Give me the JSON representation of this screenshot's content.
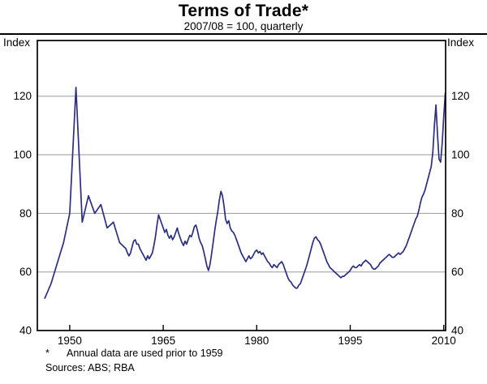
{
  "title": "Terms of Trade*",
  "subtitle": "2007/08 = 100, quarterly",
  "axis_label_left": "Index",
  "axis_label_right": "Index",
  "footnote_marker": "*",
  "footnote_text": "Annual data are used prior to 1959",
  "sources_text": "Sources: ABS; RBA",
  "chart_data": {
    "type": "line",
    "series_name": "Australia terms of trade",
    "line_color": "#2b2e84",
    "grid_color": "#9a9a9a",
    "frame_color": "#000000",
    "x_ticks": [
      1950,
      1965,
      1980,
      1995,
      2010
    ],
    "y_ticks": [
      40,
      60,
      80,
      100,
      120
    ],
    "xlim": [
      1944.8,
      2010.3
    ],
    "ylim": [
      40,
      139
    ],
    "legend": "none",
    "grid": "horizontal",
    "annual": {
      "note": "annual observations 1946-1958",
      "start_year": 1946,
      "step_years": 1,
      "values": [
        51,
        56,
        63,
        70,
        80,
        123,
        77,
        86,
        80,
        83,
        75,
        77,
        70
      ]
    },
    "quarterly": {
      "note": "quarterly observations from 1959 Q1 to 2010 Q2",
      "start_year": 1959,
      "step_years": 0.25,
      "values": [
        68,
        66.5,
        65.5,
        66.5,
        68.5,
        70.5,
        71,
        69.5,
        69.5,
        68,
        67,
        66,
        65,
        64,
        65.5,
        64.5,
        65.5,
        66.5,
        69,
        72,
        76,
        79.5,
        78,
        76.5,
        75,
        73.5,
        74.5,
        72.5,
        71.5,
        72.5,
        71,
        72,
        73.5,
        75,
        73,
        71.5,
        70,
        69,
        70.5,
        69.5,
        71,
        72.5,
        72,
        73.5,
        75.5,
        76,
        74,
        71.5,
        70,
        69,
        67,
        64.5,
        62,
        60.5,
        62.5,
        66,
        70,
        74,
        77.5,
        80.5,
        84.5,
        87.5,
        86,
        82.5,
        78,
        76.5,
        77.5,
        75,
        74,
        73.5,
        72.5,
        71,
        69.5,
        68,
        66.5,
        65.5,
        64.5,
        63.5,
        64.5,
        65.5,
        64.5,
        65,
        66,
        67,
        67.5,
        66.5,
        67,
        66,
        66.5,
        65.5,
        64.5,
        63.5,
        63,
        62,
        61.5,
        62.5,
        62,
        61.5,
        62.5,
        63,
        63.5,
        62.5,
        61,
        59.5,
        58,
        57,
        56.5,
        55.5,
        55,
        54.5,
        54.5,
        55.5,
        56,
        57.5,
        59,
        60.5,
        62,
        64,
        66,
        68,
        70,
        71.5,
        72,
        71,
        70.5,
        69.5,
        68,
        66.5,
        65,
        63.5,
        62.5,
        61.5,
        61,
        60.5,
        60,
        59.5,
        59,
        58.5,
        58,
        58.5,
        58.5,
        59,
        59.5,
        60,
        60.5,
        61.5,
        62,
        61.5,
        61.5,
        62,
        62.5,
        62,
        63,
        63.5,
        64,
        63.5,
        63,
        62.5,
        61.5,
        61,
        61,
        61.5,
        62,
        63,
        63.5,
        64,
        64.5,
        65,
        65.5,
        66,
        65.5,
        65,
        65,
        65.5,
        66,
        66.5,
        66,
        66.5,
        67,
        68,
        69,
        70.5,
        72,
        73.5,
        75,
        76.5,
        78,
        79,
        81,
        83.5,
        85.5,
        86.5,
        88,
        90,
        92,
        94,
        96,
        101,
        110,
        117,
        107,
        98.5,
        97.5,
        104,
        113,
        121
      ]
    }
  }
}
